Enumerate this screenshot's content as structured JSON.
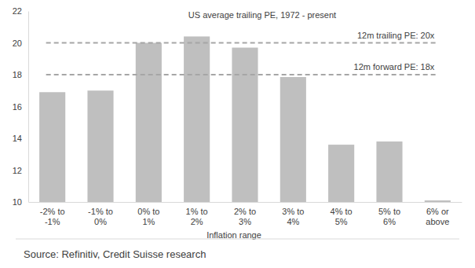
{
  "chart_data": {
    "type": "bar",
    "title": "US average trailing PE, 1972 - present",
    "x_label": "Inflation range",
    "source": "Source: Refinitiv, Credit Suisse research",
    "categories": [
      "-2% to -1%",
      "-1% to 0%",
      "0% to 1%",
      "1% to 2%",
      "2% to 3%",
      "3% to 4%",
      "4% to 5%",
      "5% to 6%",
      "6% or above"
    ],
    "values": [
      16.9,
      17.0,
      20.0,
      20.4,
      19.7,
      17.85,
      13.6,
      13.8,
      10.1
    ],
    "color": "#bfbfbf",
    "ylim": [
      10,
      22
    ],
    "yticks": [
      10,
      12,
      14,
      16,
      18,
      20,
      22
    ],
    "grid": false,
    "reference_lines": [
      {
        "label": "12m trailing PE: 20x",
        "value": 20,
        "line_style": "dashed",
        "color": "#a6a6a6"
      },
      {
        "label": "12m forward PE: 18x",
        "value": 18,
        "line_style": "dashed",
        "color": "#a6a6a6"
      }
    ]
  }
}
